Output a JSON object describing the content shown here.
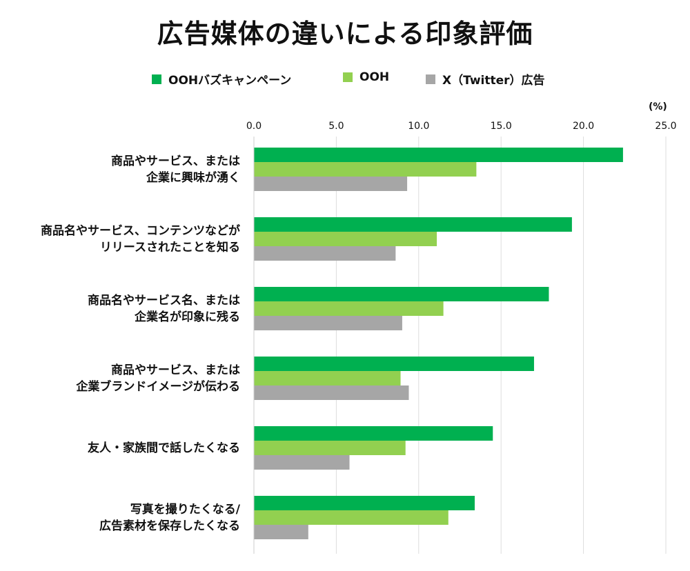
{
  "chart_data": {
    "type": "bar",
    "orientation": "horizontal",
    "title": "広告媒体の違いによる印象評価",
    "unit_label": "(%)",
    "xlim": [
      0,
      25
    ],
    "ticks": [
      "0.0",
      "5.0",
      "10.0",
      "15.0",
      "20.0",
      "25.0"
    ],
    "categories": [
      [
        "商品やサービス、または",
        "企業に興味が湧く"
      ],
      [
        "商品名やサービス、コンテンツなどが",
        "リリースされたことを知る"
      ],
      [
        "商品名やサービス名、または",
        "企業名が印象に残る"
      ],
      [
        "商品やサービス、または",
        "企業ブランドイメージが伝わる"
      ],
      [
        "友人・家族間で話したくなる"
      ],
      [
        "写真を撮りたくなる/",
        "広告素材を保存したくなる"
      ]
    ],
    "series": [
      {
        "name": "OOHバズキャンペーン",
        "color": "#00b050",
        "values": [
          22.4,
          19.3,
          17.9,
          17.0,
          14.5,
          13.4
        ]
      },
      {
        "name": "OOH",
        "color": "#92d050",
        "values": [
          13.5,
          11.1,
          11.5,
          8.9,
          9.2,
          11.8
        ]
      },
      {
        "name": "X（Twitter）広告",
        "color": "#a6a6a6",
        "values": [
          9.3,
          8.6,
          9.0,
          9.4,
          5.8,
          3.3
        ]
      }
    ]
  }
}
